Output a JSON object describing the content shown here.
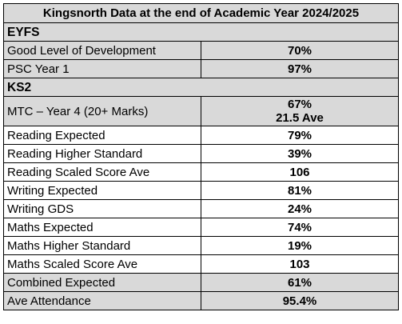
{
  "title": "Kingsnorth Data at the end of Academic Year 2024/2025",
  "colors": {
    "shaded_row": "#d9d9d9",
    "white_row": "#ffffff",
    "border": "#000000"
  },
  "sections": [
    {
      "name": "EYFS",
      "rows": [
        {
          "label": "Good Level of Development",
          "values": [
            "70%"
          ],
          "shaded": true
        },
        {
          "label": "PSC Year 1",
          "values": [
            "97%"
          ],
          "shaded": true
        }
      ]
    },
    {
      "name": "KS2",
      "rows": [
        {
          "label": "MTC – Year 4 (20+ Marks)",
          "values": [
            "67%",
            "21.5 Ave"
          ],
          "shaded": true
        },
        {
          "label": "Reading Expected",
          "values": [
            "79%"
          ],
          "shaded": false
        },
        {
          "label": "Reading Higher Standard",
          "values": [
            "39%"
          ],
          "shaded": false
        },
        {
          "label": "Reading Scaled Score Ave",
          "values": [
            "106"
          ],
          "shaded": false
        },
        {
          "label": "Writing Expected",
          "values": [
            "81%"
          ],
          "shaded": false
        },
        {
          "label": "Writing GDS",
          "values": [
            "24%"
          ],
          "shaded": false
        },
        {
          "label": "Maths Expected",
          "values": [
            "74%"
          ],
          "shaded": false
        },
        {
          "label": "Maths Higher Standard",
          "values": [
            "19%"
          ],
          "shaded": false
        },
        {
          "label": "Maths Scaled Score Ave",
          "values": [
            "103"
          ],
          "shaded": false
        },
        {
          "label": "Combined Expected",
          "values": [
            "61%"
          ],
          "shaded": true
        },
        {
          "label": "Ave Attendance",
          "values": [
            "95.4%"
          ],
          "shaded": true
        }
      ]
    }
  ]
}
